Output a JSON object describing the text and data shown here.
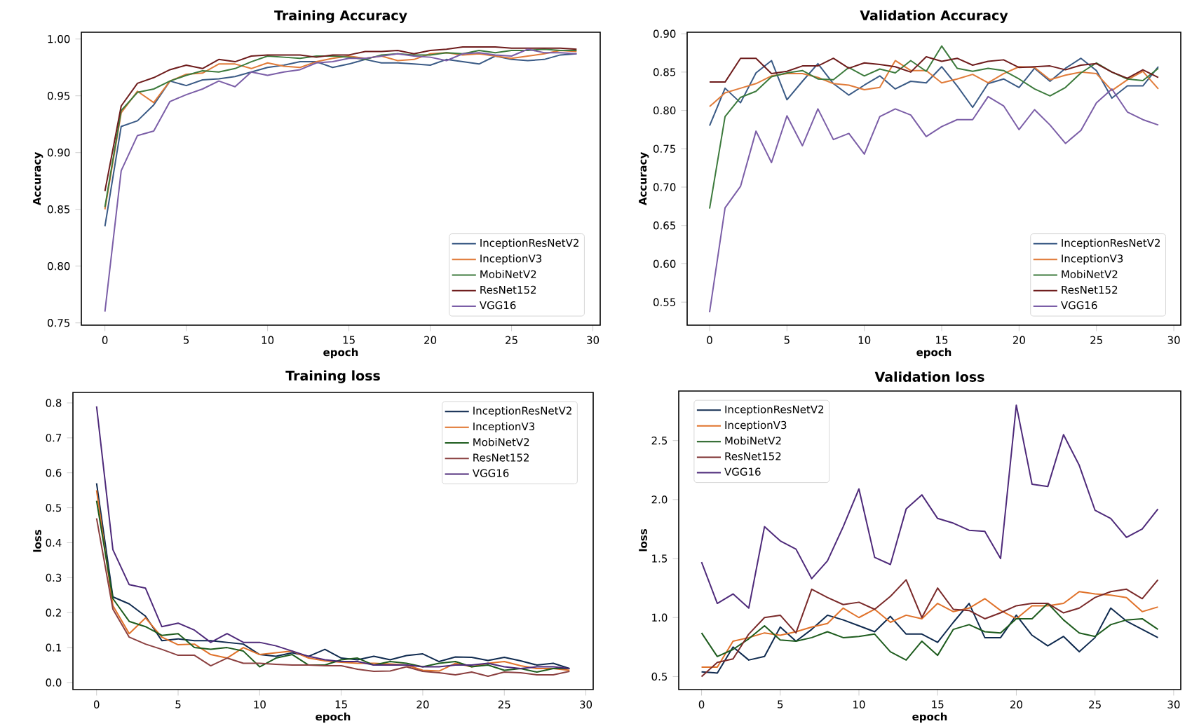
{
  "chart_data": [
    {
      "type": "line",
      "title": "Training Accuracy",
      "xlabel": "epoch",
      "ylabel": "Accuracy",
      "legend": "bottom right",
      "x": [
        0,
        1,
        2,
        3,
        4,
        5,
        6,
        7,
        8,
        9,
        10,
        11,
        12,
        13,
        14,
        15,
        16,
        17,
        18,
        19,
        20,
        21,
        22,
        23,
        24,
        25,
        26,
        27,
        28,
        29
      ],
      "xlim": [
        -1.45,
        30.45
      ],
      "xticks": [
        0,
        5,
        10,
        15,
        20,
        25,
        30
      ],
      "ylim": [
        0.748,
        1.006
      ],
      "yticks": [
        {
          "value": 0.75,
          "label": "0.75"
        },
        {
          "value": 0.8,
          "label": "0.80"
        },
        {
          "value": 0.85,
          "label": "0.85"
        },
        {
          "value": 0.9,
          "label": "0.90"
        },
        {
          "value": 0.95,
          "label": "0.95"
        },
        {
          "value": 1.0,
          "label": "1.00"
        }
      ],
      "series": [
        {
          "name": "InceptionResNetV2",
          "color": "#3a5a85",
          "values": [
            0.835,
            0.923,
            0.928,
            0.942,
            0.963,
            0.959,
            0.964,
            0.965,
            0.967,
            0.971,
            0.975,
            0.977,
            0.98,
            0.98,
            0.975,
            0.978,
            0.982,
            0.979,
            0.979,
            0.978,
            0.977,
            0.982,
            0.98,
            0.978,
            0.985,
            0.982,
            0.981,
            0.982,
            0.986,
            0.987
          ]
        },
        {
          "name": "InceptionV3",
          "color": "#e07b39",
          "values": [
            0.85,
            0.935,
            0.954,
            0.944,
            0.963,
            0.969,
            0.97,
            0.978,
            0.978,
            0.974,
            0.979,
            0.976,
            0.975,
            0.98,
            0.983,
            0.985,
            0.983,
            0.985,
            0.981,
            0.982,
            0.987,
            0.988,
            0.986,
            0.987,
            0.985,
            0.983,
            0.985,
            0.987,
            0.99,
            0.989
          ]
        },
        {
          "name": "MobiNetV2",
          "color": "#3c7a3c",
          "values": [
            0.852,
            0.937,
            0.953,
            0.956,
            0.963,
            0.968,
            0.972,
            0.971,
            0.974,
            0.98,
            0.985,
            0.984,
            0.983,
            0.985,
            0.985,
            0.984,
            0.982,
            0.986,
            0.987,
            0.986,
            0.986,
            0.988,
            0.987,
            0.99,
            0.988,
            0.99,
            0.99,
            0.991,
            0.99,
            0.99
          ]
        },
        {
          "name": "ResNet152",
          "color": "#6e1c1c",
          "values": [
            0.866,
            0.941,
            0.961,
            0.966,
            0.973,
            0.977,
            0.974,
            0.982,
            0.98,
            0.985,
            0.986,
            0.986,
            0.986,
            0.984,
            0.986,
            0.986,
            0.989,
            0.989,
            0.99,
            0.987,
            0.99,
            0.991,
            0.993,
            0.993,
            0.993,
            0.992,
            0.992,
            0.992,
            0.992,
            0.991
          ]
        },
        {
          "name": "VGG16",
          "color": "#7b5ea7",
          "values": [
            0.76,
            0.884,
            0.915,
            0.919,
            0.945,
            0.951,
            0.956,
            0.963,
            0.958,
            0.971,
            0.968,
            0.971,
            0.973,
            0.979,
            0.98,
            0.983,
            0.983,
            0.985,
            0.987,
            0.985,
            0.984,
            0.981,
            0.987,
            0.988,
            0.986,
            0.985,
            0.991,
            0.988,
            0.988,
            0.987
          ]
        }
      ]
    },
    {
      "type": "line",
      "title": "Validation Accuracy",
      "xlabel": "epoch",
      "ylabel": "Accuracy",
      "legend": "bottom right",
      "x": [
        0,
        1,
        2,
        3,
        4,
        5,
        6,
        7,
        8,
        9,
        10,
        11,
        12,
        13,
        14,
        15,
        16,
        17,
        18,
        19,
        20,
        21,
        22,
        23,
        24,
        25,
        26,
        27,
        28,
        29
      ],
      "xlim": [
        -1.45,
        30.45
      ],
      "xticks": [
        0,
        5,
        10,
        15,
        20,
        25,
        30
      ],
      "ylim": [
        0.52,
        0.902
      ],
      "yticks": [
        {
          "value": 0.55,
          "label": "0.55"
        },
        {
          "value": 0.6,
          "label": "0.60"
        },
        {
          "value": 0.65,
          "label": "0.65"
        },
        {
          "value": 0.7,
          "label": "0.70"
        },
        {
          "value": 0.75,
          "label": "0.75"
        },
        {
          "value": 0.8,
          "label": "0.80"
        },
        {
          "value": 0.85,
          "label": "0.85"
        },
        {
          "value": 0.9,
          "label": "0.90"
        }
      ],
      "series": [
        {
          "name": "InceptionResNetV2",
          "color": "#3a5a85",
          "values": [
            0.78,
            0.829,
            0.81,
            0.849,
            0.865,
            0.814,
            0.838,
            0.861,
            0.835,
            0.82,
            0.833,
            0.845,
            0.828,
            0.838,
            0.836,
            0.857,
            0.832,
            0.804,
            0.835,
            0.841,
            0.83,
            0.855,
            0.838,
            0.855,
            0.868,
            0.852,
            0.816,
            0.832,
            0.832,
            0.857
          ]
        },
        {
          "name": "InceptionV3",
          "color": "#e07b39",
          "values": [
            0.805,
            0.823,
            0.829,
            0.835,
            0.845,
            0.848,
            0.848,
            0.843,
            0.835,
            0.833,
            0.827,
            0.83,
            0.865,
            0.852,
            0.852,
            0.836,
            0.841,
            0.847,
            0.836,
            0.848,
            0.857,
            0.856,
            0.84,
            0.846,
            0.85,
            0.848,
            0.826,
            0.84,
            0.851,
            0.828
          ]
        },
        {
          "name": "MobiNetV2",
          "color": "#3c7a3c",
          "values": [
            0.672,
            0.792,
            0.817,
            0.825,
            0.844,
            0.849,
            0.852,
            0.841,
            0.84,
            0.856,
            0.845,
            0.854,
            0.849,
            0.865,
            0.851,
            0.884,
            0.855,
            0.851,
            0.855,
            0.852,
            0.841,
            0.828,
            0.819,
            0.83,
            0.849,
            0.862,
            0.85,
            0.841,
            0.839,
            0.855
          ]
        },
        {
          "name": "ResNet152",
          "color": "#6e1c1c",
          "values": [
            0.837,
            0.837,
            0.868,
            0.868,
            0.848,
            0.851,
            0.858,
            0.858,
            0.868,
            0.855,
            0.862,
            0.86,
            0.857,
            0.85,
            0.87,
            0.864,
            0.868,
            0.859,
            0.864,
            0.866,
            0.856,
            0.857,
            0.858,
            0.853,
            0.859,
            0.861,
            0.85,
            0.842,
            0.853,
            0.843
          ]
        },
        {
          "name": "VGG16",
          "color": "#7b5ea7",
          "values": [
            0.537,
            0.673,
            0.701,
            0.773,
            0.732,
            0.793,
            0.754,
            0.802,
            0.762,
            0.77,
            0.743,
            0.792,
            0.802,
            0.794,
            0.766,
            0.779,
            0.788,
            0.788,
            0.818,
            0.806,
            0.775,
            0.801,
            0.781,
            0.757,
            0.774,
            0.81,
            0.828,
            0.798,
            0.788,
            0.781
          ]
        }
      ]
    },
    {
      "type": "line",
      "title": "Training loss",
      "xlabel": "epoch",
      "ylabel": "loss",
      "legend": "top right",
      "x": [
        0,
        1,
        2,
        3,
        4,
        5,
        6,
        7,
        8,
        9,
        10,
        11,
        12,
        13,
        14,
        15,
        16,
        17,
        18,
        19,
        20,
        21,
        22,
        23,
        24,
        25,
        26,
        27,
        28,
        29
      ],
      "xlim": [
        -1.45,
        30.45
      ],
      "xticks": [
        0,
        5,
        10,
        15,
        20,
        25,
        30
      ],
      "ylim": [
        -0.02,
        0.83
      ],
      "yticks": [
        {
          "value": 0.0,
          "label": "0.0"
        },
        0.1,
        0.2,
        0.3,
        0.4,
        0.5,
        0.6,
        0.7,
        0.8
      ],
      "series": [
        {
          "name": "InceptionResNetV2",
          "color": "#0f2a4f",
          "values": [
            0.57,
            0.245,
            0.225,
            0.19,
            0.12,
            0.125,
            0.12,
            0.12,
            0.115,
            0.11,
            0.08,
            0.075,
            0.085,
            0.075,
            0.095,
            0.07,
            0.065,
            0.075,
            0.065,
            0.077,
            0.082,
            0.06,
            0.073,
            0.072,
            0.063,
            0.072,
            0.062,
            0.05,
            0.055,
            0.04
          ]
        },
        {
          "name": "InceptionV3",
          "color": "#e0722a",
          "values": [
            0.55,
            0.22,
            0.14,
            0.185,
            0.13,
            0.108,
            0.11,
            0.08,
            0.07,
            0.1,
            0.08,
            0.085,
            0.09,
            0.07,
            0.062,
            0.058,
            0.055,
            0.055,
            0.053,
            0.05,
            0.035,
            0.033,
            0.055,
            0.045,
            0.055,
            0.06,
            0.048,
            0.04,
            0.04,
            0.035
          ]
        },
        {
          "name": "MobiNetV2",
          "color": "#1e5c1e",
          "values": [
            0.52,
            0.24,
            0.175,
            0.16,
            0.135,
            0.14,
            0.1,
            0.095,
            0.1,
            0.09,
            0.045,
            0.07,
            0.08,
            0.05,
            0.05,
            0.065,
            0.07,
            0.05,
            0.06,
            0.055,
            0.045,
            0.055,
            0.06,
            0.045,
            0.05,
            0.035,
            0.04,
            0.03,
            0.04,
            0.04
          ]
        },
        {
          "name": "ResNet152",
          "color": "#8b4040",
          "values": [
            0.47,
            0.21,
            0.13,
            0.11,
            0.095,
            0.078,
            0.078,
            0.048,
            0.07,
            0.055,
            0.055,
            0.052,
            0.05,
            0.05,
            0.048,
            0.048,
            0.038,
            0.032,
            0.033,
            0.045,
            0.032,
            0.028,
            0.022,
            0.03,
            0.018,
            0.03,
            0.028,
            0.022,
            0.022,
            0.032
          ]
        },
        {
          "name": "VGG16",
          "color": "#4e2a7a",
          "values": [
            0.79,
            0.38,
            0.28,
            0.27,
            0.16,
            0.17,
            0.15,
            0.115,
            0.14,
            0.115,
            0.115,
            0.105,
            0.09,
            0.075,
            0.065,
            0.06,
            0.06,
            0.05,
            0.05,
            0.05,
            0.045,
            0.045,
            0.05,
            0.05,
            0.055,
            0.045,
            0.04,
            0.045,
            0.045,
            0.04
          ]
        }
      ]
    },
    {
      "type": "line",
      "title": "Validation loss",
      "xlabel": "epoch",
      "ylabel": "loss",
      "legend": "top left",
      "x": [
        0,
        1,
        2,
        3,
        4,
        5,
        6,
        7,
        8,
        9,
        10,
        11,
        12,
        13,
        14,
        15,
        16,
        17,
        18,
        19,
        20,
        21,
        22,
        23,
        24,
        25,
        26,
        27,
        28,
        29
      ],
      "xlim": [
        -1.45,
        30.45
      ],
      "xticks": [
        0,
        5,
        10,
        15,
        20,
        25,
        30
      ],
      "ylim": [
        0.39,
        2.92
      ],
      "yticks": [
        0.5,
        {
          "value": 1.0,
          "label": "1.0"
        },
        1.5,
        {
          "value": 2.0,
          "label": "2.0"
        },
        2.5
      ],
      "series": [
        {
          "name": "InceptionResNetV2",
          "color": "#0f2a4f",
          "values": [
            0.54,
            0.53,
            0.75,
            0.64,
            0.67,
            0.92,
            0.8,
            0.9,
            1.02,
            0.98,
            0.93,
            0.88,
            1.01,
            0.86,
            0.86,
            0.79,
            0.96,
            1.12,
            0.83,
            0.83,
            1.02,
            0.85,
            0.76,
            0.84,
            0.71,
            0.83,
            1.08,
            0.97,
            0.9,
            0.83
          ]
        },
        {
          "name": "InceptionV3",
          "color": "#e0722a",
          "values": [
            0.58,
            0.58,
            0.8,
            0.83,
            0.87,
            0.85,
            0.88,
            0.92,
            0.95,
            1.08,
            1.0,
            1.07,
            0.96,
            1.02,
            0.99,
            1.12,
            1.05,
            1.08,
            1.16,
            1.06,
            0.99,
            1.1,
            1.1,
            1.12,
            1.22,
            1.2,
            1.19,
            1.17,
            1.05,
            1.09
          ]
        },
        {
          "name": "MobiNetV2",
          "color": "#1e5c1e",
          "values": [
            0.87,
            0.67,
            0.73,
            0.82,
            0.93,
            0.81,
            0.8,
            0.83,
            0.88,
            0.83,
            0.84,
            0.86,
            0.71,
            0.64,
            0.8,
            0.68,
            0.9,
            0.94,
            0.88,
            0.87,
            0.99,
            0.99,
            1.12,
            0.98,
            0.87,
            0.84,
            0.94,
            0.98,
            0.99,
            0.9
          ]
        },
        {
          "name": "ResNet152",
          "color": "#7a2a2a",
          "values": [
            0.5,
            0.62,
            0.65,
            0.86,
            1.0,
            1.02,
            0.87,
            1.24,
            1.17,
            1.11,
            1.13,
            1.07,
            1.18,
            1.32,
            1.0,
            1.25,
            1.07,
            1.06,
            0.99,
            1.04,
            1.1,
            1.12,
            1.12,
            1.04,
            1.08,
            1.17,
            1.22,
            1.24,
            1.16,
            1.32
          ]
        },
        {
          "name": "VGG16",
          "color": "#4e2a7a",
          "values": [
            1.47,
            1.12,
            1.2,
            1.08,
            1.77,
            1.65,
            1.58,
            1.33,
            1.48,
            1.77,
            2.09,
            1.51,
            1.45,
            1.92,
            2.04,
            1.84,
            1.8,
            1.74,
            1.73,
            1.5,
            2.8,
            2.13,
            2.11,
            2.55,
            2.29,
            1.91,
            1.84,
            1.68,
            1.75,
            1.92
          ]
        }
      ]
    }
  ]
}
